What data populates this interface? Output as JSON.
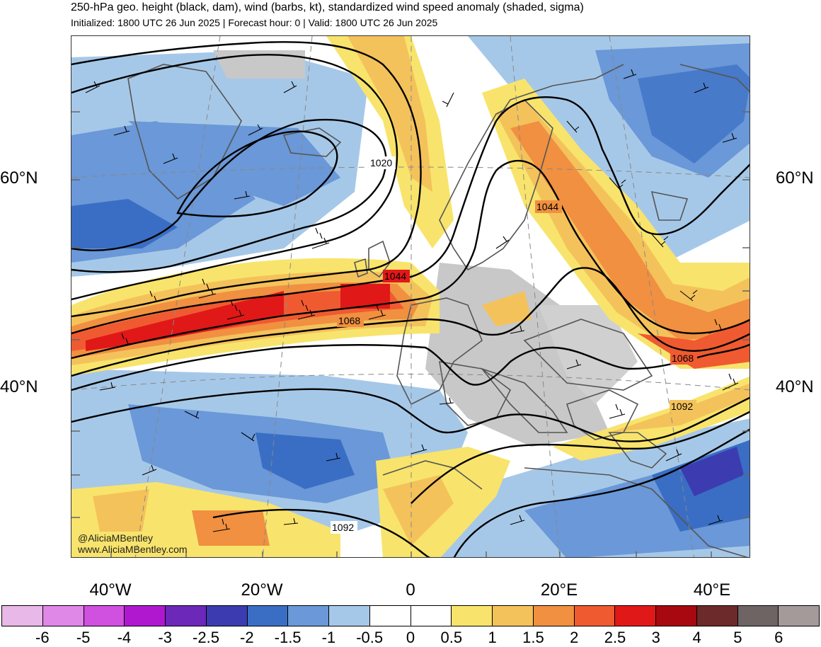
{
  "header": {
    "title": "250-hPa geo. height (black, dam), wind (barbs, kt), standardized wind speed anomaly (shaded, sigma)",
    "subtitle": "Initialized: 1800 UTC 26 Jun 2025 | Forecast hour: 0 | Valid: 1800 UTC 26 Jun 2025"
  },
  "map": {
    "lat_labels": [
      "60°N",
      "40°N"
    ],
    "lon_labels": [
      "40°W",
      "20°W",
      "0",
      "20°E",
      "40°E"
    ],
    "contour_labels": [
      "1020",
      "1044",
      "1044",
      "1068",
      "1068",
      "1092",
      "1092"
    ],
    "credit": [
      "@AliciaMBentley",
      "www.AliciaMBentley.com"
    ]
  },
  "colorbar": {
    "colors": [
      "#e8b8e8",
      "#e088e8",
      "#d050e0",
      "#b018d0",
      "#6c28b8",
      "#3c3cb0",
      "#3a6ec4",
      "#6a98d8",
      "#a6c8e8",
      "#ffffff",
      "#ffffff",
      "#f8e46c",
      "#f4c25a",
      "#f09040",
      "#f05a30",
      "#e01818",
      "#a80810",
      "#6c2a2a",
      "#6e6464",
      "#a49a9a"
    ],
    "tick_labels": [
      "-6",
      "-5",
      "-4",
      "-3",
      "-2.5",
      "-2",
      "-1.5",
      "-1",
      "-0.5",
      "0",
      "0.5",
      "1",
      "1.5",
      "2",
      "2.5",
      "3",
      "4",
      "5",
      "6"
    ]
  }
}
